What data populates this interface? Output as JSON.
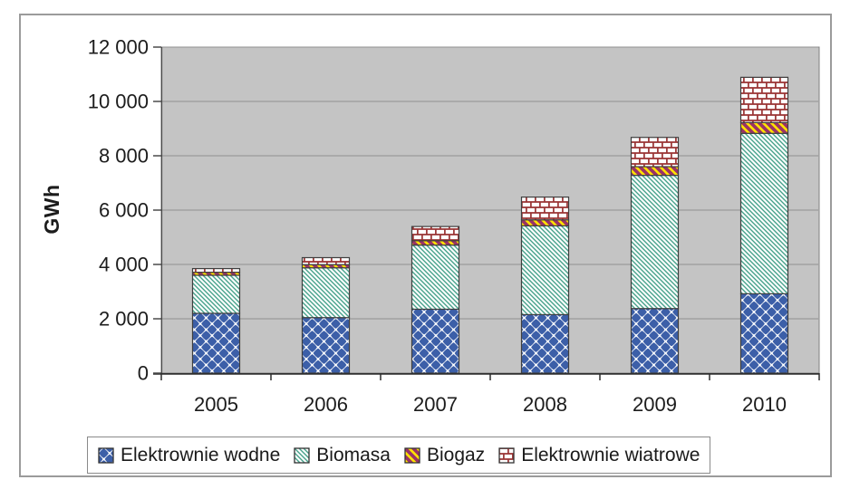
{
  "chart_data": {
    "type": "bar",
    "stacked": true,
    "categories": [
      "2005",
      "2006",
      "2007",
      "2008",
      "2009",
      "2010"
    ],
    "series": [
      {
        "name": "Elektrownie wodne",
        "pattern": "blue-diamonds",
        "colors": {
          "fill": "#3c5fa8",
          "bg": "#ffffff"
        },
        "values": [
          2201,
          2043,
          2352,
          2153,
          2376,
          2920
        ]
      },
      {
        "name": "Biomasa",
        "pattern": "teal-downward-diagonal-lines",
        "colors": {
          "fill": "#45a18a",
          "bg": "#ffffff"
        },
        "values": [
          1400,
          1833,
          2360,
          3268,
          4904,
          5905
        ]
      },
      {
        "name": "Biogaz",
        "pattern": "maroon-on-yellow-diagonal-stripes",
        "colors": {
          "fill": "#993366",
          "bg": "#ffe400"
        },
        "values": [
          111,
          117,
          162,
          221,
          319,
          398
        ]
      },
      {
        "name": "Elektrownie wiatrowe",
        "pattern": "red-bricks",
        "colors": {
          "fill": "#993333",
          "bg": "#ffffff"
        },
        "values": [
          135,
          257,
          522,
          837,
          1077,
          1665
        ]
      }
    ],
    "totals": [
      3847,
      4250,
      5396,
      6479,
      8676,
      10888
    ],
    "title": "",
    "xlabel": "",
    "ylabel": "GWh",
    "ylim": [
      0,
      12000
    ],
    "ytick_step": 2000,
    "ytick_labels": [
      "0",
      "2 000",
      "4 000",
      "6 000",
      "8 000",
      "10 000",
      "12 000"
    ],
    "grid": true,
    "legend_position": "bottom",
    "plot_background": "#c4c4c4",
    "gridline_color": "#8f8f8f",
    "bar_outline_color": "#3f3f3f"
  }
}
